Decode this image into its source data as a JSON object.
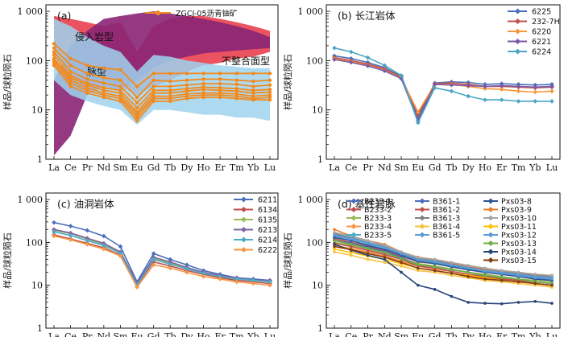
{
  "y_axis_label": "样品/球粒陨石",
  "chart_data": [
    {
      "type": "line",
      "title": "(a)",
      "ylabel": "样品/球粒陨石",
      "categories": [
        "La",
        "Ce",
        "Pr",
        "Nd",
        "Sm",
        "Eu",
        "Gd",
        "Tb",
        "Dy",
        "Ho",
        "Er",
        "Tm",
        "Yb",
        "Lu"
      ],
      "yscale": "log",
      "ylim": [
        1,
        1000
      ],
      "yticks": [
        "1",
        "10",
        "100",
        "1 000"
      ],
      "legend_position": "top",
      "series_style": {
        "color": "#f28a1e",
        "marker": "circle"
      },
      "series": [
        {
          "name": "ZGCJ-05沥青铀矿",
          "values": [
            220,
            110,
            80,
            70,
            65,
            30,
            55,
            55,
            55,
            55,
            55,
            55,
            55,
            55
          ]
        },
        {
          "values": [
            180,
            80,
            55,
            45,
            40,
            18,
            40,
            38,
            40,
            42,
            42,
            40,
            38,
            40
          ]
        },
        {
          "values": [
            150,
            60,
            42,
            35,
            30,
            14,
            30,
            30,
            32,
            34,
            34,
            33,
            30,
            32
          ]
        },
        {
          "values": [
            130,
            50,
            35,
            28,
            25,
            11,
            25,
            25,
            27,
            29,
            28,
            27,
            25,
            26
          ]
        },
        {
          "values": [
            110,
            45,
            32,
            25,
            22,
            9,
            22,
            22,
            24,
            26,
            25,
            24,
            22,
            23
          ]
        },
        {
          "values": [
            100,
            40,
            28,
            22,
            19,
            8,
            19,
            19,
            21,
            22,
            22,
            21,
            19,
            20
          ]
        },
        {
          "values": [
            90,
            35,
            25,
            20,
            17,
            7,
            17,
            17,
            19,
            20,
            20,
            19,
            17,
            18
          ]
        },
        {
          "values": [
            80,
            30,
            22,
            18,
            15,
            6,
            15,
            15,
            17,
            18,
            18,
            17,
            16,
            16
          ]
        }
      ],
      "fields": [
        {
          "label": "侵入岩型",
          "color": "#e8404e",
          "lower": [
            150,
            60,
            40,
            40,
            30,
            20,
            30,
            40,
            60,
            80,
            90,
            110,
            120,
            150
          ],
          "upper": [
            800,
            700,
            600,
            500,
            600,
            150,
            500,
            700,
            800,
            800,
            700,
            600,
            500,
            400
          ]
        },
        {
          "label": "不整合面型",
          "color": "#8a2476",
          "lower": [
            1.2,
            3,
            20,
            30,
            25,
            40,
            70,
            100,
            120,
            140,
            150,
            160,
            170,
            180
          ],
          "upper": [
            40,
            200,
            400,
            700,
            800,
            900,
            1000,
            900,
            800,
            700,
            600,
            500,
            400,
            300
          ]
        },
        {
          "label": "脉型",
          "color": "#9fd4ef",
          "lower": [
            40,
            20,
            15,
            12,
            10,
            5,
            10,
            10,
            9,
            8,
            8,
            7,
            7,
            6
          ],
          "upper": [
            700,
            500,
            300,
            200,
            150,
            60,
            130,
            120,
            100,
            90,
            80,
            75,
            70,
            70
          ]
        }
      ]
    },
    {
      "type": "line",
      "title": "(b) 长江岩体",
      "ylabel": "样品/球粒陨石",
      "categories": [
        "La",
        "Ce",
        "Pr",
        "Nd",
        "Sm",
        "Eu",
        "Gd",
        "Tb",
        "Dy",
        "Ho",
        "Er",
        "Tm",
        "Yb",
        "Lu"
      ],
      "yscale": "log",
      "ylim": [
        1,
        1000
      ],
      "yticks": [
        "1",
        "10",
        "100",
        "1 000"
      ],
      "legend_position": "top-right",
      "series": [
        {
          "name": "6225",
          "color": "#4a6fba",
          "values": [
            125,
            110,
            92,
            72,
            48,
            7,
            35,
            37,
            36,
            33,
            34,
            33,
            32,
            33
          ]
        },
        {
          "name": "232-7H",
          "color": "#c0504d",
          "values": [
            115,
            100,
            85,
            68,
            46,
            8,
            34,
            35,
            33,
            30,
            30,
            29,
            28,
            29
          ]
        },
        {
          "name": "6220",
          "color": "#f7963b",
          "values": [
            110,
            95,
            80,
            64,
            44,
            9,
            33,
            33,
            30,
            27,
            26,
            24,
            23,
            24
          ]
        },
        {
          "name": "6221",
          "color": "#7a58a5",
          "values": [
            105,
            92,
            78,
            62,
            43,
            6,
            33,
            32,
            31,
            30,
            31,
            30,
            29,
            30
          ]
        },
        {
          "name": "6224",
          "color": "#4ba6c5",
          "values": [
            180,
            150,
            115,
            80,
            50,
            5.5,
            28,
            24,
            19,
            16,
            16,
            15,
            15,
            15
          ]
        }
      ]
    },
    {
      "type": "line",
      "title": "(c) 油洞岩体",
      "ylabel": "样品/球粒陨石",
      "categories": [
        "La",
        "Ce",
        "Pr",
        "Nd",
        "Sm",
        "Eu",
        "Gd",
        "Tb",
        "Dy",
        "Ho",
        "Er",
        "Tm",
        "Yb",
        "Lu"
      ],
      "yscale": "log",
      "ylim": [
        1,
        1000
      ],
      "yticks": [
        "1",
        "10",
        "100",
        "1 000"
      ],
      "legend_position": "top-right",
      "series": [
        {
          "name": "6211",
          "color": "#4a6fba",
          "values": [
            290,
            240,
            190,
            140,
            80,
            12,
            55,
            40,
            30,
            22,
            18,
            15,
            14,
            13
          ]
        },
        {
          "name": "6134",
          "color": "#c0504d",
          "values": [
            150,
            120,
            95,
            75,
            50,
            10,
            35,
            28,
            22,
            18,
            15,
            13,
            12,
            11
          ]
        },
        {
          "name": "6135",
          "color": "#9bbb59",
          "values": [
            190,
            160,
            120,
            90,
            58,
            11,
            42,
            33,
            25,
            19,
            16,
            14,
            13,
            12
          ]
        },
        {
          "name": "6213",
          "color": "#8064a2",
          "values": [
            200,
            165,
            125,
            95,
            60,
            11,
            45,
            35,
            26,
            20,
            17,
            15,
            13,
            13
          ]
        },
        {
          "name": "6214",
          "color": "#4bacc6",
          "values": [
            175,
            145,
            110,
            85,
            55,
            10,
            40,
            31,
            24,
            19,
            16,
            14,
            13,
            12
          ]
        },
        {
          "name": "6222",
          "color": "#f79646",
          "values": [
            140,
            115,
            90,
            70,
            48,
            9,
            30,
            25,
            20,
            16,
            14,
            12,
            11,
            10
          ]
        }
      ]
    },
    {
      "type": "line",
      "title": "(d) 基性岩脉",
      "ylabel": "样品/球粒陨石",
      "categories": [
        "La",
        "Ce",
        "Pr",
        "Nd",
        "Sm",
        "Eu",
        "Gd",
        "Tb",
        "Dy",
        "Ho",
        "Er",
        "Tm",
        "Yb",
        "Lu"
      ],
      "yscale": "log",
      "ylim": [
        1,
        1000
      ],
      "yticks": [
        "1",
        "10",
        "100",
        "1 000"
      ],
      "legend_position": "top",
      "series": [
        {
          "name": "B233-1",
          "color": "#4a6fba",
          "values": [
            140,
            120,
            95,
            75,
            55,
            40,
            36,
            30,
            26,
            22,
            20,
            18,
            16,
            15
          ]
        },
        {
          "name": "B233-2",
          "color": "#c0504d",
          "values": [
            120,
            100,
            80,
            65,
            48,
            35,
            32,
            27,
            23,
            20,
            18,
            16,
            14,
            13
          ]
        },
        {
          "name": "B233-3",
          "color": "#9bbb59",
          "values": [
            100,
            85,
            70,
            56,
            42,
            32,
            28,
            24,
            20,
            18,
            16,
            14,
            13,
            12
          ]
        },
        {
          "name": "B233-4",
          "color": "#f79646",
          "values": [
            85,
            72,
            60,
            48,
            36,
            28,
            24,
            21,
            18,
            16,
            14,
            13,
            12,
            11
          ]
        },
        {
          "name": "B233-5",
          "color": "#4bacc6",
          "values": [
            130,
            110,
            88,
            70,
            52,
            38,
            34,
            28,
            24,
            21,
            19,
            17,
            15,
            14
          ]
        },
        {
          "name": "B361-1",
          "color": "#4a6fba",
          "values": [
            110,
            95,
            76,
            60,
            45,
            30,
            27,
            23,
            20,
            17,
            15,
            14,
            12,
            11
          ]
        },
        {
          "name": "B361-2",
          "color": "#c0504d",
          "values": [
            95,
            80,
            65,
            52,
            40,
            28,
            25,
            21,
            18,
            16,
            14,
            13,
            11,
            10
          ]
        },
        {
          "name": "B361-3",
          "color": "#7f7f7f",
          "values": [
            160,
            130,
            100,
            80,
            58,
            42,
            38,
            32,
            27,
            23,
            21,
            19,
            17,
            16
          ]
        },
        {
          "name": "B361-4",
          "color": "#f7c242",
          "values": [
            60,
            50,
            40,
            34,
            28,
            22,
            20,
            17,
            15,
            13,
            12,
            11,
            10,
            9
          ]
        },
        {
          "name": "B361-5",
          "color": "#5b9bd5",
          "values": [
            150,
            125,
            98,
            78,
            56,
            40,
            36,
            30,
            26,
            22,
            20,
            18,
            16,
            15
          ]
        },
        {
          "name": "Pxs03-8",
          "color": "#2f5597",
          "values": [
            130,
            110,
            85,
            68,
            50,
            36,
            32,
            27,
            23,
            20,
            18,
            16,
            14,
            13
          ]
        },
        {
          "name": "Pxs03-9",
          "color": "#ed7d31",
          "values": [
            200,
            140,
            110,
            90,
            60,
            45,
            40,
            33,
            28,
            24,
            22,
            20,
            18,
            17
          ]
        },
        {
          "name": "Pxs03-10",
          "color": "#a5a5a5",
          "values": [
            170,
            140,
            110,
            85,
            60,
            44,
            40,
            34,
            29,
            25,
            22,
            20,
            18,
            17
          ]
        },
        {
          "name": "Pxs03-11",
          "color": "#ffc000",
          "values": [
            70,
            58,
            48,
            40,
            32,
            25,
            22,
            19,
            17,
            15,
            13,
            12,
            11,
            10
          ]
        },
        {
          "name": "Pxs03-12",
          "color": "#5b9bd5",
          "values": [
            145,
            120,
            95,
            75,
            54,
            39,
            35,
            29,
            25,
            21,
            19,
            17,
            15,
            14
          ]
        },
        {
          "name": "Pxs03-13",
          "color": "#70ad47",
          "values": [
            110,
            90,
            72,
            58,
            42,
            30,
            27,
            23,
            20,
            17,
            15,
            14,
            12,
            11
          ]
        },
        {
          "name": "Pxs03-14",
          "color": "#264478",
          "values": [
            90,
            65,
            50,
            40,
            20,
            10,
            8,
            5.5,
            4,
            3.8,
            3.7,
            4,
            4.2,
            3.8
          ]
        },
        {
          "name": "Pxs03-15",
          "color": "#843c0c",
          "values": [
            80,
            68,
            55,
            45,
            34,
            25,
            22,
            19,
            16,
            14,
            13,
            12,
            11,
            10
          ]
        }
      ]
    }
  ]
}
